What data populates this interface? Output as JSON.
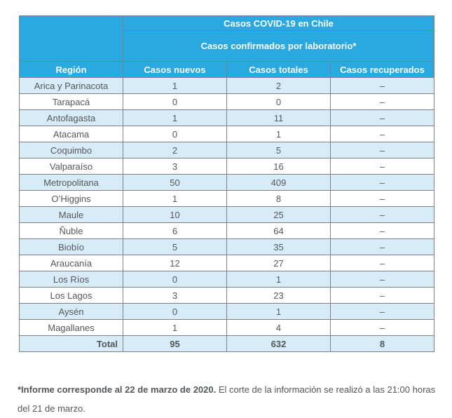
{
  "chart_data": {
    "type": "table",
    "title": "Casos COVID-19 en Chile",
    "subtitle": "Casos confirmados por laboratorio*",
    "columns": [
      "Región",
      "Casos nuevos",
      "Casos totales",
      "Casos recuperados"
    ],
    "rows": [
      [
        "Arica y Parinacota",
        "1",
        "2",
        "–"
      ],
      [
        "Tarapacá",
        "0",
        "0",
        "–"
      ],
      [
        "Antofagasta",
        "1",
        "11",
        "–"
      ],
      [
        "Atacama",
        "0",
        "1",
        "–"
      ],
      [
        "Coquimbo",
        "2",
        "5",
        "–"
      ],
      [
        "Valparaíso",
        "3",
        "16",
        "–"
      ],
      [
        "Metropolitana",
        "50",
        "409",
        "–"
      ],
      [
        "O’Higgins",
        "1",
        "8",
        "–"
      ],
      [
        "Maule",
        "10",
        "25",
        "–"
      ],
      [
        "Ñuble",
        "6",
        "64",
        "–"
      ],
      [
        "Biobío",
        "5",
        "35",
        "–"
      ],
      [
        "Araucanía",
        "12",
        "27",
        "–"
      ],
      [
        "Los Ríos",
        "0",
        "1",
        "–"
      ],
      [
        "Los Lagos",
        "3",
        "23",
        "–"
      ],
      [
        "Aysén",
        "0",
        "1",
        "–"
      ],
      [
        "Magallanes",
        "1",
        "4",
        "–"
      ]
    ],
    "total_row": [
      "Total",
      "95",
      "632",
      "8"
    ]
  },
  "footnote": {
    "bold": "*Informe corresponde al 22 de marzo de 2020.",
    "regular": "El corte de la información se realizó a las 21:00 horas del 21 de marzo."
  },
  "colors": {
    "header_blue": "#29A9DF",
    "row_light_blue": "#D8ECF7",
    "row_white": "#FFFFFF",
    "border_gray": "#808080",
    "text_dark": "#54585B",
    "header_text": "#FFFFFF"
  }
}
